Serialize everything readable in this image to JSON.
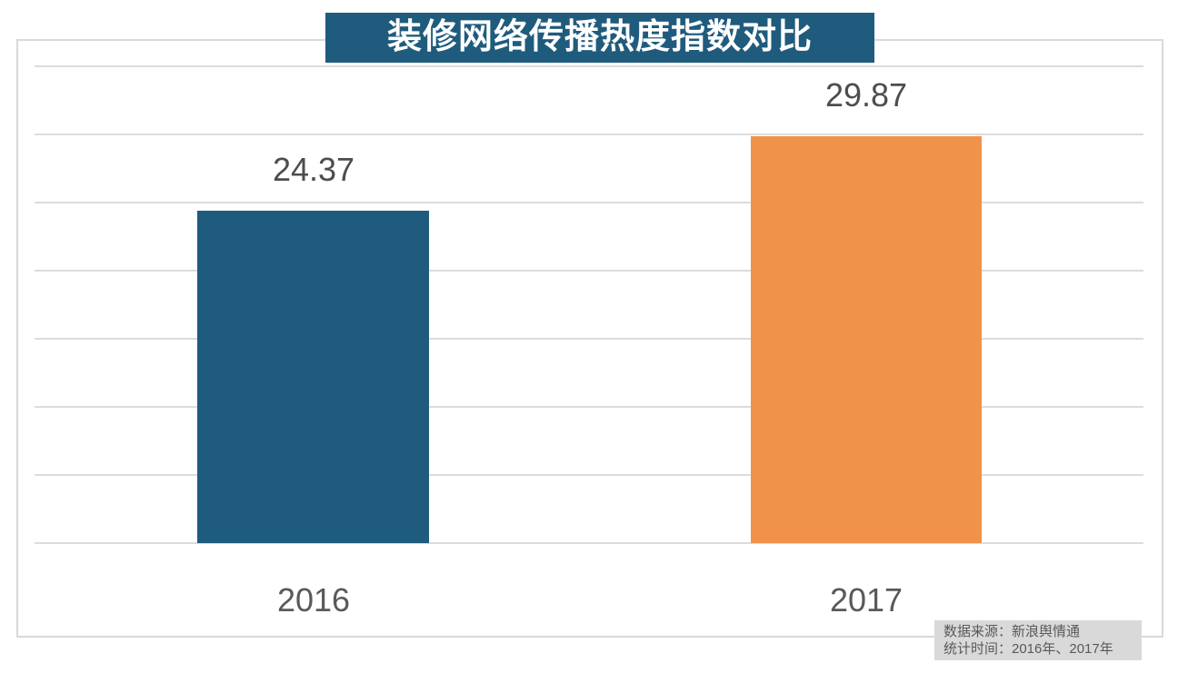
{
  "chart_data": {
    "type": "bar",
    "title": "装修网络传播热度指数对比",
    "categories": [
      "2016",
      "2017"
    ],
    "values": [
      24.37,
      29.87
    ],
    "value_labels": [
      "24.37",
      "29.87"
    ],
    "series_colors": [
      "#1F5B7D",
      "#F0924A"
    ],
    "xlabel": "",
    "ylabel": "",
    "ylim": [
      0,
      35
    ],
    "gridline_step": 5,
    "grid": true,
    "legend": "none",
    "y_axis_tick_labels_visible": false
  },
  "source_note": {
    "line1": "数据来源：新浪舆情通",
    "line2": "统计时间：2016年、2017年"
  },
  "colors": {
    "title_bg": "#1F5B7D",
    "title_text": "#FFFFFF",
    "bar_2016": "#1F5B7D",
    "bar_2017": "#F0924A",
    "gridline": "#DCDCDC",
    "plot_border": "#D9D9D9",
    "value_label_text": "#4D4D4D",
    "category_label_text": "#595959",
    "source_bg": "#D9D9D9",
    "source_text": "#595959"
  }
}
